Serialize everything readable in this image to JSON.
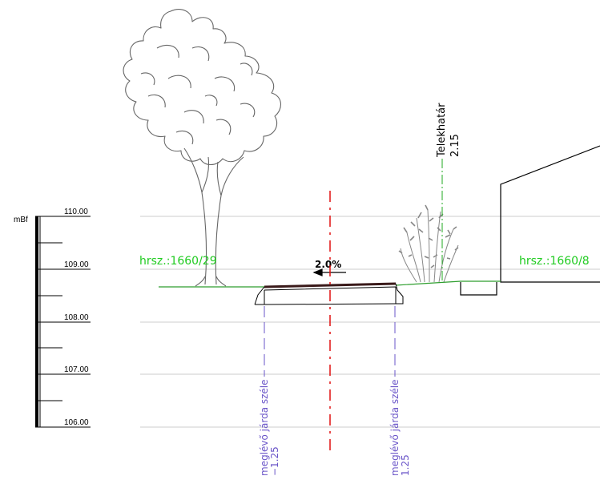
{
  "colors": {
    "background": "#ffffff",
    "line": "#000000",
    "grid": "#cccccc",
    "ground": "#2e9e2e",
    "parcel_label": "#22cc22",
    "centerline": "#e01010",
    "sidewalk_marker": "#6a55c8",
    "boundary_line": "#22aa22",
    "tree": "#666666"
  },
  "scale_bar": {
    "unit": "mBf",
    "levels": [
      "110.00",
      "109.00",
      "108.00",
      "107.00",
      "106.00"
    ]
  },
  "section": {
    "parcel_left": "hrsz.:1660/29",
    "parcel_right": "hrsz.:1660/8",
    "slope": "2.0%",
    "boundary_label": "Telekhatár",
    "boundary_value": "2.15",
    "sidewalk_edge_left_label": "meglévő járda széle",
    "sidewalk_edge_left_value": "−1.25",
    "sidewalk_edge_right_label": "meglévő járda széle",
    "sidewalk_edge_right_value": "1.25"
  },
  "icons": [
    "tree-icon",
    "shrub-icon",
    "slope-arrow-icon"
  ]
}
